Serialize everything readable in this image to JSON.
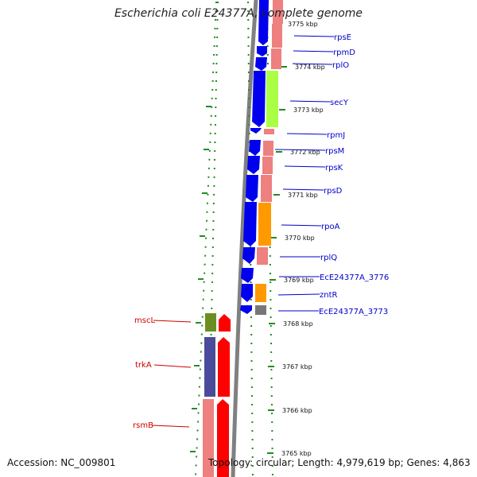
{
  "title": "Escherichia coli E24377A, complete genome",
  "accession_label": "Accession: NC_009801",
  "summary_label": "Topology: circular; Length: 4,979,619 bp; Genes: 4,863",
  "colors": {
    "backbone": "#808080",
    "tick": "#228B22",
    "forward_label": "#0000cc",
    "reverse_label": "#cc0000",
    "cds_blue": "#0000ee",
    "cds_red": "#ff0000",
    "pink": "#ee8080",
    "green": "#aaff44",
    "orange": "#ff9900",
    "olive": "#6b8e23",
    "navy": "#4b4b9b",
    "gray": "#777777"
  },
  "kbp_labels": [
    "3775 kbp",
    "3774 kbp",
    "3773 kbp",
    "3772 kbp",
    "3771 kbp",
    "3770 kbp",
    "3769 kbp",
    "3768 kbp",
    "3767 kbp",
    "3766 kbp",
    "3765 kbp"
  ],
  "forward_genes": [
    "rpsE",
    "rpmD",
    "rplO",
    "secY",
    "rpmJ",
    "rpsM",
    "rpsK",
    "rpsD",
    "rpoA",
    "rplQ",
    "EcE24377A_3776",
    "zntR",
    "EcE24377A_3773"
  ],
  "reverse_genes": [
    "mscL",
    "trkA",
    "rsmB"
  ]
}
